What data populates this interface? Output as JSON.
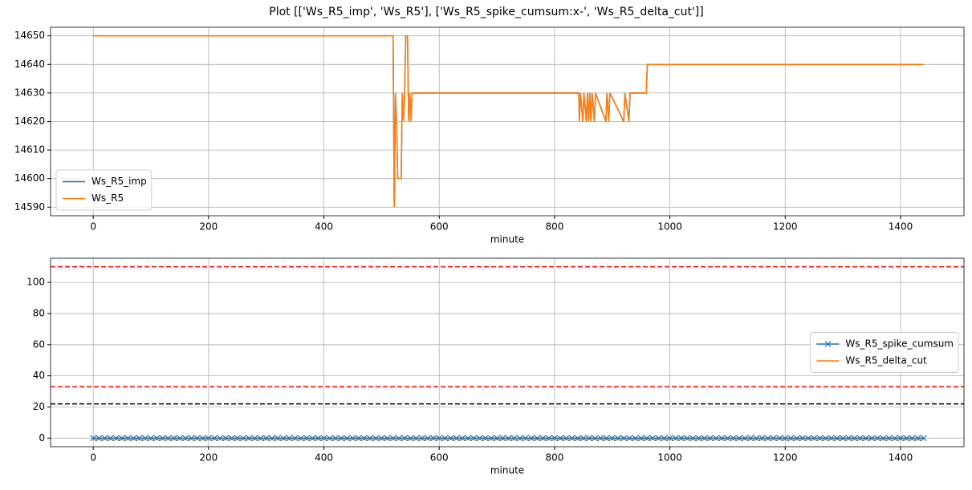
{
  "title": "Plot [['Ws_R5_imp', 'Ws_R5'], ['Ws_R5_spike_cumsum:x-', 'Ws_R5_delta_cut']]",
  "chart_data": [
    {
      "type": "line",
      "xlabel": "minute",
      "grid": true,
      "legend": "lower left",
      "xlim": [
        -74,
        1510
      ],
      "xticks": [
        0,
        200,
        400,
        600,
        800,
        1000,
        1200,
        1400
      ],
      "ylim": [
        14587,
        14653
      ],
      "yticks": [
        14590,
        14600,
        14610,
        14620,
        14630,
        14640,
        14650
      ],
      "x": [
        0,
        520,
        522,
        524,
        526,
        528,
        534,
        536,
        538,
        540,
        542,
        545,
        547,
        549,
        551,
        553,
        842,
        843,
        845,
        849,
        851,
        855,
        857,
        859,
        861,
        863,
        865,
        869,
        871,
        889,
        891,
        894,
        896,
        920,
        922,
        929,
        931,
        959,
        961,
        1440
      ],
      "series": [
        {
          "name": "Ws_R5_imp",
          "color": "#1f77b4",
          "values": [
            14650,
            14650,
            14590,
            14630,
            14620,
            14600,
            14600,
            14630,
            14620,
            14630,
            14650,
            14650,
            14620,
            14630,
            14620,
            14630,
            14630,
            14620,
            14630,
            14620,
            14630,
            14620,
            14630,
            14620,
            14630,
            14620,
            14630,
            14620,
            14630,
            14620,
            14630,
            14620,
            14630,
            14620,
            14630,
            14620,
            14630,
            14630,
            14640,
            14640
          ]
        },
        {
          "name": "Ws_R5",
          "color": "#ff7f0e",
          "values": [
            14650,
            14650,
            14590,
            14630,
            14620,
            14600,
            14600,
            14630,
            14620,
            14630,
            14650,
            14650,
            14620,
            14630,
            14620,
            14630,
            14630,
            14620,
            14630,
            14620,
            14630,
            14620,
            14630,
            14620,
            14630,
            14620,
            14630,
            14620,
            14630,
            14620,
            14630,
            14620,
            14630,
            14620,
            14630,
            14620,
            14630,
            14630,
            14640,
            14640
          ]
        }
      ]
    },
    {
      "type": "line",
      "xlabel": "minute",
      "grid": true,
      "legend": "center right",
      "xlim": [
        -74,
        1510
      ],
      "xticks": [
        0,
        200,
        400,
        600,
        800,
        1000,
        1200,
        1400
      ],
      "ylim": [
        -5.5,
        115.5
      ],
      "yticks": [
        0,
        20,
        40,
        60,
        80,
        100
      ],
      "hlines": [
        {
          "y": 110,
          "color": "#ff0000"
        },
        {
          "y": 33,
          "color": "#ff0000"
        },
        {
          "y": 22,
          "color": "#000000"
        }
      ],
      "series": [
        {
          "name": "Ws_R5_spike_cumsum",
          "color": "#1f77b4",
          "marker": "x",
          "x": [
            0,
            10,
            20,
            30,
            40,
            50,
            60,
            70,
            80,
            90,
            100,
            110,
            120,
            130,
            140,
            150,
            160,
            170,
            180,
            190,
            200,
            210,
            220,
            230,
            240,
            250,
            260,
            270,
            280,
            290,
            300,
            310,
            320,
            330,
            340,
            350,
            360,
            370,
            380,
            390,
            400,
            410,
            420,
            430,
            440,
            450,
            460,
            470,
            480,
            490,
            500,
            510,
            520,
            530,
            540,
            550,
            560,
            570,
            580,
            590,
            600,
            610,
            620,
            630,
            640,
            650,
            660,
            670,
            680,
            690,
            700,
            710,
            720,
            730,
            740,
            750,
            760,
            770,
            780,
            790,
            800,
            810,
            820,
            830,
            840,
            850,
            860,
            870,
            880,
            890,
            900,
            910,
            920,
            930,
            940,
            950,
            960,
            970,
            980,
            990,
            1000,
            1010,
            1020,
            1030,
            1040,
            1050,
            1060,
            1070,
            1080,
            1090,
            1100,
            1110,
            1120,
            1130,
            1140,
            1150,
            1160,
            1170,
            1180,
            1190,
            1200,
            1210,
            1220,
            1230,
            1240,
            1250,
            1260,
            1270,
            1280,
            1290,
            1300,
            1310,
            1320,
            1330,
            1340,
            1350,
            1360,
            1370,
            1380,
            1390,
            1400,
            1410,
            1420,
            1430,
            1440
          ],
          "values": [
            0,
            0,
            0,
            0,
            0,
            0,
            0,
            0,
            0,
            0,
            0,
            0,
            0,
            0,
            0,
            0,
            0,
            0,
            0,
            0,
            0,
            0,
            0,
            0,
            0,
            0,
            0,
            0,
            0,
            0,
            0,
            0,
            0,
            0,
            0,
            0,
            0,
            0,
            0,
            0,
            0,
            0,
            0,
            0,
            0,
            0,
            0,
            0,
            0,
            0,
            0,
            0,
            0,
            0,
            0,
            0,
            0,
            0,
            0,
            0,
            0,
            0,
            0,
            0,
            0,
            0,
            0,
            0,
            0,
            0,
            0,
            0,
            0,
            0,
            0,
            0,
            0,
            0,
            0,
            0,
            0,
            0,
            0,
            0,
            0,
            0,
            0,
            0,
            0,
            0,
            0,
            0,
            0,
            0,
            0,
            0,
            0,
            0,
            0,
            0,
            0,
            0,
            0,
            0,
            0,
            0,
            0,
            0,
            0,
            0,
            0,
            0,
            0,
            0,
            0,
            0,
            0,
            0,
            0,
            0,
            0,
            0,
            0,
            0,
            0,
            0,
            0,
            0,
            0,
            0,
            0,
            0,
            0,
            0,
            0,
            0,
            0,
            0,
            0,
            0,
            0,
            0,
            0,
            0,
            0
          ]
        },
        {
          "name": "Ws_R5_delta_cut",
          "color": "#ff7f0e",
          "x": [
            0,
            1440
          ],
          "values": [
            -1,
            -1
          ]
        }
      ]
    }
  ]
}
